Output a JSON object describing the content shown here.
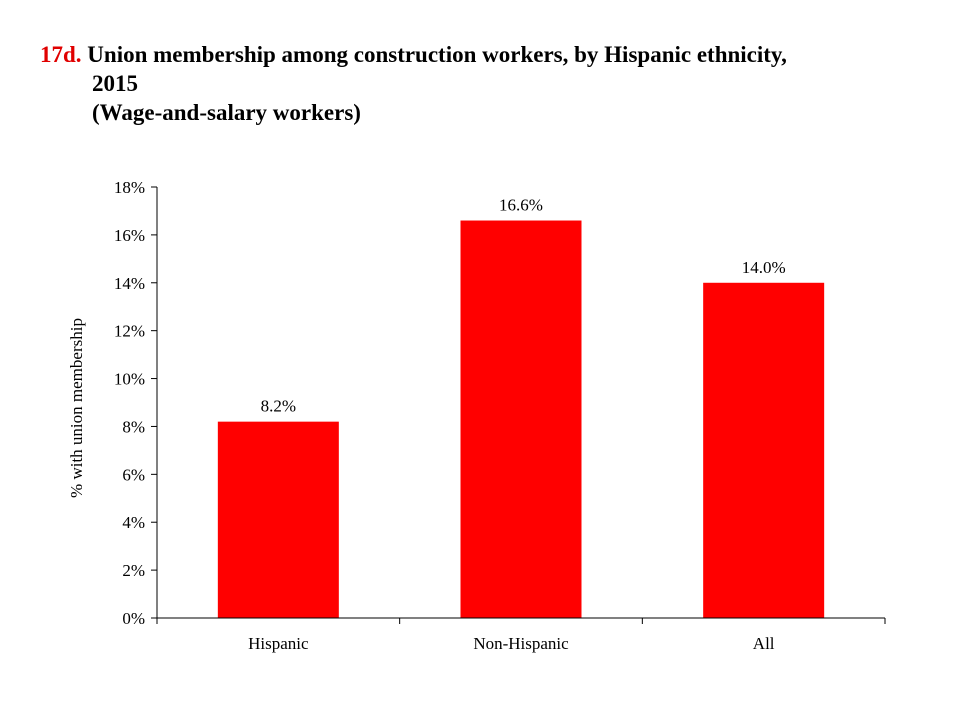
{
  "title": {
    "number": "17d.",
    "line1": "Union membership among construction workers, by Hispanic ethnicity,",
    "line2": "2015",
    "line3": "(Wage-and-salary workers)"
  },
  "colors": {
    "bar": "#ff0000",
    "title_number": "#e00000",
    "axis": "#000000"
  },
  "chart_data": {
    "type": "bar",
    "categories": [
      "Hispanic",
      "Non-Hispanic",
      "All"
    ],
    "values": [
      8.2,
      16.6,
      14.0
    ],
    "data_labels": [
      "8.2%",
      "16.6%",
      "14.0%"
    ],
    "title": "Union membership among construction workers, by Hispanic ethnicity, 2015",
    "subtitle": "(Wage-and-salary workers)",
    "xlabel": "",
    "ylabel": "% with union membership",
    "ylim": [
      0,
      18
    ],
    "yticks": [
      0,
      2,
      4,
      6,
      8,
      10,
      12,
      14,
      16,
      18
    ],
    "ytick_labels": [
      "0%",
      "2%",
      "4%",
      "6%",
      "8%",
      "10%",
      "12%",
      "14%",
      "16%",
      "18%"
    ],
    "grid": false,
    "legend": "none"
  }
}
